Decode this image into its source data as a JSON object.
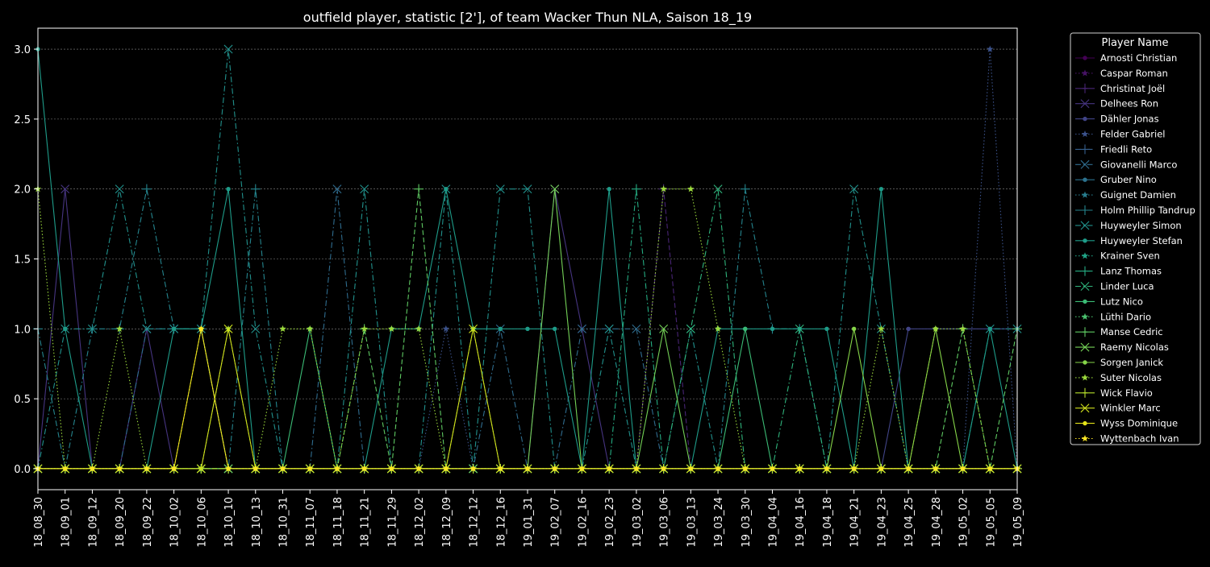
{
  "chart_data": {
    "type": "line",
    "title": "outfield player, statistic [2'], of team Wacker Thun NLA, Saison 18_19",
    "xlabel": "",
    "ylabel": "",
    "ylim": [
      -0.15,
      3.15
    ],
    "yticks": [
      "0.0",
      "0.5",
      "1.0",
      "1.5",
      "2.0",
      "2.5",
      "3.0"
    ],
    "grid": true,
    "legend_title": "Player Name",
    "legend_position": "outside-right",
    "x": [
      "18_08_30",
      "18_09_01",
      "18_09_12",
      "18_09_20",
      "18_09_22",
      "18_10_02",
      "18_10_06",
      "18_10_10",
      "18_10_13",
      "18_10_31",
      "18_11_07",
      "18_11_18",
      "18_11_21",
      "18_11_29",
      "18_12_02",
      "18_12_09",
      "18_12_12",
      "18_12_16",
      "19_01_31",
      "19_02_07",
      "19_02_16",
      "19_02_23",
      "19_03_02",
      "19_03_06",
      "19_03_13",
      "19_03_24",
      "19_03_30",
      "19_04_04",
      "19_04_16",
      "19_04_18",
      "19_04_21",
      "19_04_23",
      "19_04_25",
      "19_04_28",
      "19_05_02",
      "19_05_05",
      "19_05_09"
    ],
    "series": [
      {
        "name": "Arnosti Christian",
        "color": "#440154",
        "marker": "circle",
        "dash": "solid",
        "values": [
          0,
          0,
          0,
          0,
          0,
          0,
          0,
          0,
          0,
          0,
          0,
          0,
          0,
          0,
          0,
          0,
          0,
          0,
          0,
          0,
          0,
          0,
          0,
          0,
          0,
          0,
          0,
          0,
          0,
          0,
          0,
          0,
          0,
          0,
          0,
          0,
          0
        ]
      },
      {
        "name": "Caspar Roman",
        "color": "#471365",
        "marker": "star",
        "dash": "dotted",
        "values": [
          0,
          0,
          0,
          0,
          0,
          0,
          0,
          0,
          0,
          0,
          0,
          0,
          0,
          0,
          0,
          0,
          0,
          0,
          0,
          0,
          0,
          0,
          0,
          0,
          0,
          0,
          0,
          0,
          0,
          0,
          0,
          0,
          0,
          0,
          0,
          0,
          0
        ]
      },
      {
        "name": "Christinat Joël",
        "color": "#482475",
        "marker": "plus",
        "dash": "dashed",
        "values": [
          0,
          0,
          0,
          0,
          0,
          0,
          0,
          0,
          0,
          0,
          0,
          0,
          0,
          0,
          0,
          0,
          0,
          0,
          0,
          0,
          0,
          0,
          0,
          2,
          0,
          0,
          0,
          0,
          0,
          0,
          0,
          0,
          0,
          0,
          0,
          0,
          0
        ]
      },
      {
        "name": "Delhees Ron",
        "color": "#463480",
        "marker": "x",
        "dash": "solid",
        "values": [
          0,
          2,
          0,
          0,
          1,
          0,
          0,
          0,
          0,
          0,
          0,
          0,
          0,
          0,
          0,
          0,
          0,
          0,
          0,
          2,
          1,
          0,
          0,
          0,
          0,
          0,
          0,
          0,
          0,
          0,
          0,
          0,
          0,
          0,
          0,
          0,
          0
        ]
      },
      {
        "name": "Dähler Jonas",
        "color": "#414487",
        "marker": "circle",
        "dash": "solid",
        "values": [
          0,
          0,
          0,
          0,
          0,
          0,
          0,
          0,
          0,
          0,
          0,
          0,
          0,
          0,
          0,
          0,
          0,
          0,
          0,
          0,
          0,
          0,
          0,
          0,
          0,
          0,
          0,
          0,
          0,
          0,
          0,
          0,
          1,
          1,
          1,
          1,
          1
        ]
      },
      {
        "name": "Felder Gabriel",
        "color": "#3b528b",
        "marker": "star",
        "dash": "dotted",
        "values": [
          0,
          0,
          0,
          0,
          0,
          0,
          0,
          0,
          0,
          0,
          0,
          0,
          0,
          0,
          0,
          1,
          0,
          0,
          0,
          0,
          0,
          0,
          0,
          0,
          0,
          0,
          0,
          0,
          0,
          0,
          0,
          0,
          0,
          0,
          0,
          3,
          0
        ]
      },
      {
        "name": "Friedli Reto",
        "color": "#355f8d",
        "marker": "plus",
        "dash": "dashdot",
        "values": [
          0,
          0,
          0,
          0,
          0,
          0,
          0,
          0,
          0,
          0,
          0,
          0,
          0,
          0,
          0,
          0,
          0,
          0,
          0,
          0,
          0,
          0,
          0,
          0,
          0,
          0,
          0,
          0,
          0,
          0,
          0,
          0,
          0,
          0,
          0,
          0,
          0
        ]
      },
      {
        "name": "Giovanelli Marco",
        "color": "#2f6c8e",
        "marker": "x",
        "dash": "dashdot",
        "values": [
          0,
          0,
          0,
          0,
          1,
          1,
          1,
          0,
          0,
          0,
          0,
          2,
          0,
          0,
          0,
          0,
          0,
          1,
          0,
          0,
          1,
          1,
          1,
          0,
          0,
          0,
          0,
          0,
          0,
          0,
          0,
          0,
          0,
          0,
          0,
          0,
          0
        ]
      },
      {
        "name": "Gruber Nino",
        "color": "#2c728e",
        "marker": "circle",
        "dash": "solid",
        "values": [
          0,
          0,
          0,
          0,
          0,
          0,
          0,
          0,
          0,
          0,
          0,
          0,
          0,
          0,
          0,
          0,
          0,
          0,
          0,
          0,
          0,
          0,
          0,
          0,
          0,
          0,
          0,
          0,
          0,
          0,
          0,
          0,
          0,
          0,
          0,
          0,
          0
        ]
      },
      {
        "name": "Guignet Damien",
        "color": "#287d8e",
        "marker": "star",
        "dash": "dotted",
        "values": [
          0,
          0,
          0,
          0,
          0,
          0,
          0,
          0,
          0,
          0,
          0,
          0,
          0,
          0,
          0,
          0,
          0,
          0,
          0,
          0,
          0,
          0,
          0,
          0,
          0,
          0,
          0,
          0,
          0,
          0,
          0,
          0,
          0,
          0,
          0,
          0,
          0
        ]
      },
      {
        "name": "Holm Phillip Tandrup",
        "color": "#25858e",
        "marker": "plus",
        "dash": "dashdot",
        "values": [
          1,
          0,
          1,
          1,
          2,
          1,
          1,
          0,
          2,
          0,
          0,
          0,
          0,
          0,
          0,
          0,
          0,
          0,
          0,
          0,
          0,
          0,
          0,
          0,
          0,
          0,
          2,
          1,
          1,
          0,
          0,
          0,
          0,
          0,
          0,
          0,
          0
        ]
      },
      {
        "name": "Huyweyler Simon",
        "color": "#21918c",
        "marker": "x",
        "dash": "dashdot",
        "values": [
          0,
          1,
          1,
          2,
          1,
          1,
          1,
          3,
          1,
          0,
          0,
          0,
          2,
          0,
          0,
          2,
          0,
          2,
          2,
          0,
          0,
          1,
          0,
          0,
          1,
          0,
          0,
          0,
          0,
          0,
          2,
          1,
          0,
          0,
          0,
          1,
          1
        ]
      },
      {
        "name": "Huyweyler Stefan",
        "color": "#1e9c89",
        "marker": "circle",
        "dash": "solid",
        "values": [
          3,
          1,
          0,
          0,
          0,
          1,
          1,
          2,
          0,
          0,
          0,
          0,
          0,
          1,
          1,
          2,
          1,
          1,
          1,
          1,
          0,
          2,
          0,
          0,
          0,
          1,
          1,
          1,
          1,
          1,
          0,
          2,
          0,
          0,
          0,
          1,
          0
        ]
      },
      {
        "name": "Krainer Sven",
        "color": "#20a486",
        "marker": "star",
        "dash": "dotted",
        "values": [
          0,
          0,
          0,
          0,
          0,
          0,
          0,
          0,
          0,
          0,
          0,
          0,
          0,
          0,
          0,
          0,
          0,
          0,
          0,
          0,
          0,
          0,
          0,
          0,
          0,
          0,
          0,
          0,
          0,
          0,
          0,
          0,
          0,
          0,
          0,
          0,
          0
        ]
      },
      {
        "name": "Lanz Thomas",
        "color": "#25ac82",
        "marker": "plus",
        "dash": "dashdot",
        "values": [
          0,
          0,
          0,
          0,
          0,
          0,
          0,
          0,
          0,
          0,
          0,
          0,
          0,
          0,
          0,
          0,
          0,
          0,
          0,
          0,
          0,
          0,
          2,
          0,
          0,
          0,
          0,
          0,
          0,
          0,
          0,
          0,
          0,
          0,
          0,
          0,
          0
        ]
      },
      {
        "name": "Linder Luca",
        "color": "#2fb47c",
        "marker": "x",
        "dash": "dashdot",
        "values": [
          0,
          0,
          0,
          0,
          0,
          0,
          0,
          0,
          0,
          0,
          0,
          0,
          0,
          0,
          0,
          0,
          0,
          0,
          0,
          0,
          0,
          0,
          0,
          0,
          1,
          2,
          0,
          0,
          1,
          0,
          0,
          0,
          0,
          0,
          0,
          0,
          0
        ]
      },
      {
        "name": "Lutz Nico",
        "color": "#3bbb75",
        "marker": "circle",
        "dash": "solid",
        "values": [
          0,
          0,
          0,
          0,
          0,
          0,
          0,
          0,
          0,
          0,
          1,
          0,
          0,
          0,
          0,
          0,
          0,
          0,
          0,
          0,
          0,
          0,
          0,
          0,
          0,
          0,
          1,
          0,
          0,
          0,
          0,
          0,
          0,
          0,
          0,
          0,
          0
        ]
      },
      {
        "name": "Lüthi Dario",
        "color": "#4ac16d",
        "marker": "star",
        "dash": "dotted",
        "values": [
          0,
          0,
          0,
          0,
          0,
          0,
          0,
          0,
          0,
          0,
          0,
          0,
          0,
          0,
          0,
          0,
          0,
          0,
          0,
          0,
          0,
          0,
          0,
          0,
          0,
          0,
          0,
          0,
          0,
          0,
          0,
          0,
          0,
          0,
          0,
          0,
          0
        ]
      },
      {
        "name": "Manse Cedric",
        "color": "#5ec962",
        "marker": "plus",
        "dash": "dashed",
        "values": [
          0,
          0,
          0,
          0,
          0,
          0,
          0,
          0,
          0,
          0,
          0,
          0,
          1,
          0,
          2,
          0,
          0,
          0,
          0,
          0,
          0,
          0,
          0,
          0,
          0,
          0,
          0,
          0,
          0,
          0,
          0,
          0,
          0,
          0,
          1,
          0,
          1
        ]
      },
      {
        "name": "Raemy Nicolas",
        "color": "#73d056",
        "marker": "x",
        "dash": "solid",
        "values": [
          0,
          0,
          0,
          0,
          0,
          0,
          0,
          0,
          0,
          0,
          0,
          0,
          0,
          0,
          0,
          0,
          0,
          0,
          0,
          2,
          0,
          0,
          0,
          1,
          0,
          0,
          0,
          0,
          0,
          0,
          0,
          0,
          0,
          0,
          0,
          0,
          0
        ]
      },
      {
        "name": "Sorgen Janick",
        "color": "#86d549",
        "marker": "circle",
        "dash": "solid",
        "values": [
          0,
          0,
          0,
          0,
          0,
          0,
          0,
          0,
          0,
          0,
          0,
          0,
          0,
          0,
          0,
          0,
          0,
          0,
          0,
          0,
          0,
          0,
          0,
          0,
          0,
          0,
          0,
          0,
          0,
          0,
          1,
          0,
          0,
          1,
          0,
          0,
          0
        ]
      },
      {
        "name": "Suter Nicolas",
        "color": "#9bd93c",
        "marker": "star",
        "dash": "dotted",
        "values": [
          2,
          0,
          0,
          1,
          0,
          0,
          0,
          1,
          0,
          1,
          1,
          0,
          1,
          1,
          1,
          0,
          1,
          0,
          0,
          0,
          0,
          0,
          0,
          2,
          2,
          1,
          0,
          0,
          0,
          0,
          0,
          1,
          0,
          1,
          1,
          0,
          0
        ]
      },
      {
        "name": "Wick Flavio",
        "color": "#b5de2b",
        "marker": "plus",
        "dash": "dashed",
        "values": [
          0,
          0,
          0,
          0,
          0,
          0,
          0,
          0,
          0,
          0,
          0,
          0,
          0,
          0,
          0,
          0,
          0,
          0,
          0,
          0,
          0,
          0,
          0,
          0,
          0,
          0,
          0,
          0,
          0,
          0,
          0,
          0,
          0,
          0,
          0,
          0,
          0
        ]
      },
      {
        "name": "Winkler Marc",
        "color": "#d0e11c",
        "marker": "x",
        "dash": "solid",
        "values": [
          0,
          0,
          0,
          0,
          0,
          0,
          0,
          1,
          0,
          0,
          0,
          0,
          0,
          0,
          0,
          0,
          1,
          0,
          0,
          0,
          0,
          0,
          0,
          0,
          0,
          0,
          0,
          0,
          0,
          0,
          0,
          0,
          0,
          0,
          0,
          0,
          0
        ]
      },
      {
        "name": "Wyss Dominique",
        "color": "#e5e419",
        "marker": "circle",
        "dash": "solid",
        "values": [
          0,
          0,
          0,
          0,
          0,
          0,
          1,
          0,
          0,
          0,
          0,
          0,
          0,
          0,
          0,
          0,
          0,
          0,
          0,
          0,
          0,
          0,
          0,
          0,
          0,
          0,
          0,
          0,
          0,
          0,
          0,
          0,
          0,
          0,
          0,
          0,
          0
        ]
      },
      {
        "name": "Wyttenbach Ivan",
        "color": "#fde725",
        "marker": "star",
        "dash": "dotted",
        "values": [
          0,
          0,
          0,
          0,
          0,
          0,
          1,
          0,
          0,
          0,
          0,
          0,
          0,
          0,
          0,
          0,
          0,
          0,
          0,
          0,
          0,
          0,
          0,
          0,
          0,
          0,
          0,
          0,
          0,
          0,
          0,
          0,
          0,
          0,
          0,
          0,
          0
        ]
      }
    ]
  }
}
